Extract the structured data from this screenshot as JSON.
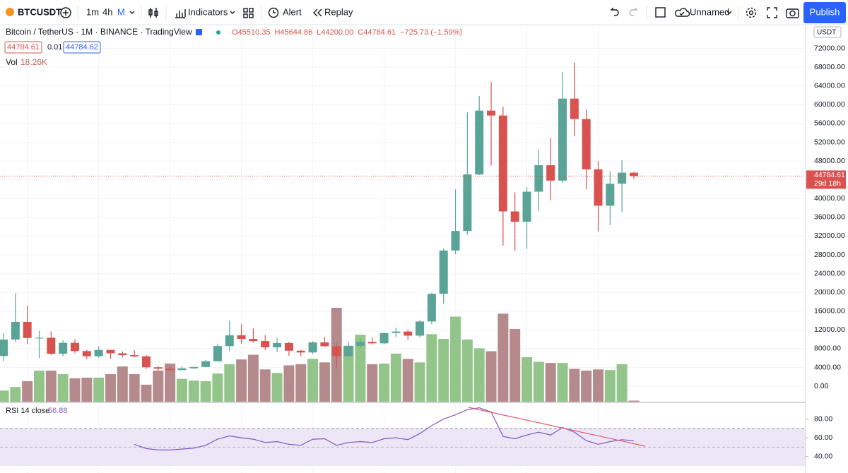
{
  "toolbar": {
    "symbol": "BTCUSDT",
    "intervals": [
      "1m",
      "4h",
      "M"
    ],
    "indicators": "Indicators",
    "alert": "Alert",
    "replay": "Replay",
    "layout_name": "Unnamed",
    "publish": "Publish"
  },
  "chart_data": {
    "type": "candlestick",
    "title": "Bitcoin / TetherUS · 1M · BINANCE · TradingView",
    "legend": {
      "ohlc": [
        "O45510.35",
        "H45644.86",
        "L44200.00",
        "C44784.61",
        "−725.73 (−1.59%)"
      ],
      "spread": "0.01",
      "ask": "44784.62"
    },
    "currency": "USDT",
    "countdown": "29d 18h",
    "up_color": "#5aa497",
    "down_color": "#d8534f",
    "volume_up_color": "#93c58b",
    "volume_down_color": "#b58a8c",
    "open": [
      6449,
      9946,
      13716,
      10285,
      10326,
      6923,
      9246,
      7485,
      6391,
      7735,
      7011,
      6626,
      6369,
      4041,
      3701,
      3434,
      3814,
      4102,
      5320,
      8555,
      10854,
      10085,
      9630,
      8293,
      9199,
      7569,
      7196,
      9351,
      8523,
      6412,
      8620,
      9448,
      9138,
      11335,
      11649,
      10776,
      13791,
      19695,
      28923,
      33092,
      45134,
      58739,
      57697,
      37253,
      35045,
      41461,
      47100,
      43820,
      61300,
      56950,
      46216,
      38466,
      43160,
      45510.35
    ],
    "high": [
      11300,
      19798,
      17176,
      11786,
      11700,
      9759,
      10020,
      7760,
      8507,
      7750,
      7410,
      7680,
      6615,
      4312,
      4143,
      4198,
      4140,
      5600,
      9074,
      13970,
      13200,
      12325,
      10905,
      10370,
      9513,
      7750,
      9578,
      10500,
      9188,
      9460,
      10067,
      10380,
      11444,
      12468,
      12050,
      14100,
      19863,
      29300,
      41950,
      58352,
      61844,
      64854,
      59592,
      41330,
      42448,
      50500,
      52920,
      67000,
      69000,
      59053,
      47990,
      45821,
      48189,
      45644.86
    ],
    "low": [
      5325,
      9400,
      9035,
      6000,
      6600,
      6426,
      7032,
      5750,
      6070,
      5880,
      6100,
      6200,
      3652,
      3156,
      3349,
      3400,
      3670,
      4067,
      5320,
      7440,
      9070,
      9320,
      7710,
      7300,
      6515,
      6435,
      6871,
      8445,
      3782,
      6150,
      8117,
      8833,
      8893,
      10518,
      9825,
      10374,
      13195,
      17572,
      28130,
      32296,
      45000,
      47044,
      30000,
      28805,
      29278,
      37332,
      39600,
      43283,
      53256,
      42000,
      32917,
      34322,
      37155,
      44200
    ],
    "close": [
      9946,
      13716,
      10285,
      10326,
      6923,
      9246,
      7485,
      6391,
      7730,
      7011,
      6626,
      6371,
      4041,
      3742,
      3437,
      3813,
      4105,
      5321,
      8555,
      10854,
      10085,
      9630,
      8293,
      9199,
      7569,
      7195,
      9352,
      8523,
      6410,
      8620,
      9448,
      9138,
      11335,
      11650,
      10776,
      13791,
      19695,
      28923,
      33092,
      45135,
      58740,
      57694,
      37253,
      35045,
      41461,
      47100,
      43824,
      61300,
      56950,
      46216,
      38466,
      43160,
      45510,
      44784.61
    ],
    "ylim": [
      -3300,
      76900
    ],
    "yticks": [
      {
        "value": 0,
        "label": "0.00"
      },
      {
        "value": 4000,
        "label": "4000.00"
      },
      {
        "value": 8000,
        "label": "8000.00"
      },
      {
        "value": 12000,
        "label": "12000.00"
      },
      {
        "value": 16000,
        "label": "16000.00"
      },
      {
        "value": 20000,
        "label": "20000.00"
      },
      {
        "value": 24000,
        "label": "24000.00"
      },
      {
        "value": 28000,
        "label": "28000.00"
      },
      {
        "value": 32000,
        "label": "32000.00"
      },
      {
        "value": 36000,
        "label": "36000.00"
      },
      {
        "value": 40000,
        "label": "40000.00"
      },
      {
        "value": 44000,
        "label": "44000.00"
      },
      {
        "value": 48000,
        "label": "48000.00"
      },
      {
        "value": 52000,
        "label": "52000.00"
      },
      {
        "value": 56000,
        "label": "56000.00"
      },
      {
        "value": 60000,
        "label": "60000.00"
      },
      {
        "value": 64000,
        "label": "64000.00"
      },
      {
        "value": 68000,
        "label": "68000.00"
      },
      {
        "value": 72000,
        "label": "72000.00"
      }
    ],
    "grid": true,
    "volume": {
      "name": "Vol",
      "last_label": "18.26K",
      "values": [
        190,
        250,
        350,
        530,
        530,
        470,
        400,
        410,
        410,
        470,
        600,
        470,
        290,
        530,
        650,
        390,
        360,
        350,
        480,
        640,
        720,
        800,
        550,
        490,
        620,
        640,
        730,
        670,
        1600,
        950,
        1140,
        640,
        650,
        820,
        730,
        670,
        1150,
        1070,
        1450,
        1060,
        910,
        860,
        1500,
        1240,
        760,
        680,
        660,
        660,
        560,
        530,
        550,
        540,
        640,
        18.26
      ]
    },
    "rsi": {
      "name": "RSI 14 close",
      "color": "#7e57c2",
      "band_color": "#ece6f6",
      "values": [
        null,
        null,
        null,
        null,
        null,
        null,
        null,
        null,
        null,
        null,
        null,
        53,
        48.5,
        47,
        47,
        48,
        49,
        52,
        58.5,
        62,
        60,
        58.5,
        55,
        56,
        53,
        52,
        58.5,
        59,
        52,
        55,
        56,
        55,
        59,
        60,
        58,
        64.5,
        73,
        80,
        84.5,
        90,
        92,
        87.5,
        61.5,
        59,
        63,
        66,
        63,
        71,
        66,
        57,
        53,
        56,
        58,
        56.88
      ],
      "ylim": [
        30,
        97
      ],
      "band": [
        30,
        70
      ],
      "midline": 50,
      "yticks": [
        {
          "value": 40,
          "label": "40.00"
        },
        {
          "value": 60,
          "label": "60.00"
        },
        {
          "value": 80,
          "label": "80.00"
        }
      ]
    }
  }
}
